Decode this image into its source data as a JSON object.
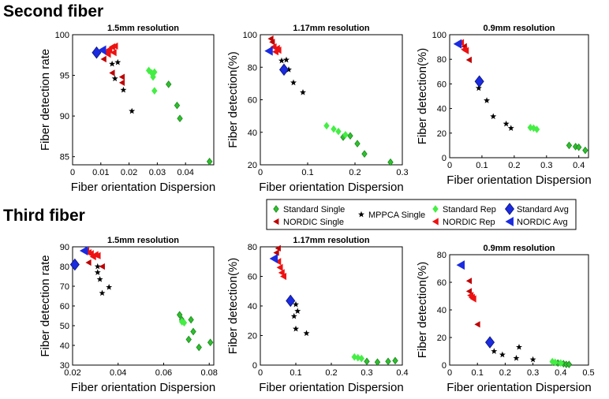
{
  "section_titles": {
    "top": "Second fiber",
    "bottom": "Third fiber"
  },
  "colors": {
    "standard_single": "#2fbf2f",
    "nordic_single": "#c00000",
    "mppca_single": "#000000",
    "standard_rep": "#44ee44",
    "nordic_rep": "#ee1111",
    "standard_avg": "#1a2be0",
    "nordic_avg": "#1a2be0"
  },
  "legend": [
    {
      "key": "standard_single",
      "label": "Standard Single",
      "marker": "diamond"
    },
    {
      "key": "mppca_single",
      "label": "MPPCA Single",
      "marker": "star"
    },
    {
      "key": "standard_rep",
      "label": "Standard Rep",
      "marker": "diamond"
    },
    {
      "key": "standard_avg",
      "label": "Standard Avg",
      "marker": "diamond"
    },
    {
      "key": "nordic_single",
      "label": "NORDIC Single",
      "marker": "triangle"
    },
    {
      "key": "nordic_rep",
      "label": "NORDIC Rep",
      "marker": "triangle"
    },
    {
      "key": "nordic_avg",
      "label": "NORDIC Avg",
      "marker": "triangle"
    }
  ],
  "chart_data": [
    {
      "id": "p1",
      "type": "scatter",
      "title": "1.5mm resolution",
      "xlabel": "Fiber orientation Dispersion",
      "ylabel": "Fiber detection rate",
      "xlim": [
        0,
        0.05
      ],
      "ylim": [
        84,
        100
      ],
      "xticks": [
        0,
        0.01,
        0.02,
        0.03,
        0.04
      ],
      "yticks": [
        85,
        90,
        95,
        100
      ],
      "series": [
        {
          "key": "standard_single",
          "points": [
            [
              0.034,
              93.9
            ],
            [
              0.037,
              91.3
            ],
            [
              0.038,
              89.7
            ],
            [
              0.0485,
              84.4
            ]
          ]
        },
        {
          "key": "standard_rep",
          "points": [
            [
              0.027,
              95.6
            ],
            [
              0.028,
              95.3
            ],
            [
              0.029,
              95.4
            ],
            [
              0.0285,
              94.8
            ],
            [
              0.029,
              93.1
            ]
          ]
        },
        {
          "key": "mppca_single",
          "points": [
            [
              0.014,
              96.4
            ],
            [
              0.016,
              96.6
            ],
            [
              0.015,
              94.6
            ],
            [
              0.018,
              93.2
            ],
            [
              0.021,
              90.6
            ]
          ]
        },
        {
          "key": "nordic_single",
          "points": [
            [
              0.011,
              97.0
            ],
            [
              0.014,
              95.3
            ],
            [
              0.0175,
              94.8
            ],
            [
              0.0175,
              94.1
            ]
          ]
        },
        {
          "key": "nordic_rep",
          "points": [
            [
              0.012,
              97.9
            ],
            [
              0.013,
              98.2
            ],
            [
              0.014,
              98.5
            ],
            [
              0.0145,
              97.8
            ],
            [
              0.015,
              98.6
            ],
            [
              0.0125,
              97.6
            ]
          ]
        },
        {
          "key": "standard_avg",
          "points": [
            [
              0.0085,
              97.8
            ]
          ]
        },
        {
          "key": "nordic_avg",
          "points": [
            [
              0.0105,
              98.1
            ]
          ]
        }
      ]
    },
    {
      "id": "p2",
      "type": "scatter",
      "title": "1.17mm resolution",
      "xlabel": "Fiber orientation Dispersion",
      "ylabel": "Fiber detection(%)",
      "xlim": [
        0,
        0.3
      ],
      "ylim": [
        20,
        100
      ],
      "xticks": [
        0,
        0.1,
        0.2,
        0.3
      ],
      "yticks": [
        20,
        40,
        60,
        80,
        100
      ],
      "series": [
        {
          "key": "standard_single",
          "points": [
            [
              0.175,
              37.0
            ],
            [
              0.19,
              37.8
            ],
            [
              0.205,
              33.0
            ],
            [
              0.22,
              26.7
            ],
            [
              0.275,
              21.6
            ]
          ]
        },
        {
          "key": "standard_rep",
          "points": [
            [
              0.14,
              44.0
            ],
            [
              0.155,
              42.0
            ],
            [
              0.165,
              40.5
            ],
            [
              0.18,
              38.5
            ]
          ]
        },
        {
          "key": "mppca_single",
          "points": [
            [
              0.045,
              84.0
            ],
            [
              0.055,
              84.5
            ],
            [
              0.06,
              78.5
            ],
            [
              0.07,
              70.5
            ],
            [
              0.09,
              64.5
            ]
          ]
        },
        {
          "key": "nordic_single",
          "points": [
            [
              0.022,
              97.5
            ],
            [
              0.025,
              95.5
            ]
          ]
        },
        {
          "key": "nordic_rep",
          "points": [
            [
              0.028,
              92.5
            ],
            [
              0.035,
              91.5
            ],
            [
              0.038,
              90.5
            ],
            [
              0.032,
              89.5
            ]
          ]
        },
        {
          "key": "standard_avg",
          "points": [
            [
              0.05,
              78.5
            ]
          ]
        },
        {
          "key": "nordic_avg",
          "points": [
            [
              0.018,
              90.0
            ]
          ]
        }
      ]
    },
    {
      "id": "p3",
      "type": "scatter",
      "title": "0.9mm resolution",
      "xlabel": "Fiber orientation Dispersion",
      "ylabel": "Fiber detection(%)",
      "xlim": [
        0,
        0.43
      ],
      "ylim": [
        0,
        100
      ],
      "xticks": [
        0,
        0.1,
        0.2,
        0.3,
        0.4
      ],
      "yticks": [
        0,
        20,
        40,
        60,
        80,
        100
      ],
      "series": [
        {
          "key": "standard_single",
          "points": [
            [
              0.37,
              10.0
            ],
            [
              0.39,
              9.0
            ],
            [
              0.4,
              8.5
            ],
            [
              0.42,
              6.0
            ]
          ]
        },
        {
          "key": "standard_rep",
          "points": [
            [
              0.25,
              24.5
            ],
            [
              0.26,
              24.0
            ],
            [
              0.27,
              23.0
            ]
          ]
        },
        {
          "key": "mppca_single",
          "points": [
            [
              0.09,
              56.5
            ],
            [
              0.115,
              46.5
            ],
            [
              0.135,
              33.5
            ],
            [
              0.175,
              27.5
            ],
            [
              0.19,
              24.0
            ]
          ]
        },
        {
          "key": "nordic_single",
          "points": [
            [
              0.045,
              90.5
            ],
            [
              0.06,
              79.5
            ]
          ]
        },
        {
          "key": "nordic_rep",
          "points": [
            [
              0.035,
              93.5
            ],
            [
              0.045,
              88.0
            ],
            [
              0.05,
              87.0
            ]
          ]
        },
        {
          "key": "standard_avg",
          "points": [
            [
              0.092,
              62.0
            ]
          ]
        },
        {
          "key": "nordic_avg",
          "points": [
            [
              0.025,
              92.5
            ]
          ]
        }
      ]
    },
    {
      "id": "p4",
      "type": "scatter",
      "title": "1.5mm resolution",
      "xlabel": "Fiber orientation Dispersion",
      "ylabel": "Fiber detection rate",
      "xlim": [
        0.02,
        0.082
      ],
      "ylim": [
        30,
        90
      ],
      "xticks": [
        0.02,
        0.04,
        0.06,
        0.08
      ],
      "yticks": [
        30,
        40,
        50,
        60,
        70,
        80,
        90
      ],
      "series": [
        {
          "key": "standard_single",
          "points": [
            [
              0.067,
              55.5
            ],
            [
              0.068,
              53.0
            ],
            [
              0.072,
              53.0
            ],
            [
              0.073,
              47.0
            ],
            [
              0.071,
              43.0
            ],
            [
              0.0755,
              39.0
            ],
            [
              0.0805,
              41.5
            ]
          ]
        },
        {
          "key": "standard_rep",
          "points": [
            [
              0.068,
              52.0
            ],
            [
              0.069,
              51.5
            ]
          ]
        },
        {
          "key": "mppca_single",
          "points": [
            [
              0.031,
              80.0
            ],
            [
              0.031,
              77.0
            ],
            [
              0.032,
              73.5
            ],
            [
              0.036,
              69.5
            ],
            [
              0.033,
              66.5
            ]
          ]
        },
        {
          "key": "nordic_single",
          "points": [
            [
              0.027,
              82.0
            ],
            [
              0.033,
              80.0
            ]
          ]
        },
        {
          "key": "nordic_rep",
          "points": [
            [
              0.026,
              88.0
            ],
            [
              0.028,
              86.5
            ],
            [
              0.029,
              85.0
            ],
            [
              0.03,
              86.0
            ],
            [
              0.031,
              85.5
            ],
            [
              0.027,
              87.0
            ]
          ]
        },
        {
          "key": "standard_avg",
          "points": [
            [
              0.021,
              81.0
            ]
          ]
        },
        {
          "key": "nordic_avg",
          "points": [
            [
              0.025,
              88.0
            ]
          ]
        }
      ]
    },
    {
      "id": "p5",
      "type": "scatter",
      "title": "1.17mm resolution",
      "xlabel": "Fiber orientation Dispersion",
      "ylabel": "Fiber detection(%)",
      "xlim": [
        0,
        0.4
      ],
      "ylim": [
        0,
        80
      ],
      "xticks": [
        0,
        0.1,
        0.2,
        0.3,
        0.4
      ],
      "yticks": [
        0,
        20,
        40,
        60,
        80
      ],
      "series": [
        {
          "key": "standard_single",
          "points": [
            [
              0.3,
              2.5
            ],
            [
              0.33,
              2.0
            ],
            [
              0.36,
              2.5
            ],
            [
              0.38,
              3.0
            ]
          ]
        },
        {
          "key": "standard_rep",
          "points": [
            [
              0.265,
              5.5
            ],
            [
              0.275,
              5.0
            ],
            [
              0.285,
              4.5
            ]
          ]
        },
        {
          "key": "mppca_single",
          "points": [
            [
              0.1,
              41.0
            ],
            [
              0.105,
              36.5
            ],
            [
              0.095,
              33.0
            ],
            [
              0.1,
              24.5
            ],
            [
              0.13,
              21.5
            ]
          ]
        },
        {
          "key": "nordic_single",
          "points": [
            [
              0.05,
              79.0
            ],
            [
              0.045,
              76.0
            ]
          ]
        },
        {
          "key": "nordic_rep",
          "points": [
            [
              0.05,
              70.0
            ],
            [
              0.055,
              66.0
            ],
            [
              0.06,
              62.5
            ],
            [
              0.065,
              60.0
            ]
          ]
        },
        {
          "key": "standard_avg",
          "points": [
            [
              0.085,
              43.5
            ]
          ]
        },
        {
          "key": "nordic_avg",
          "points": [
            [
              0.038,
              72.0
            ]
          ]
        }
      ]
    },
    {
      "id": "p6",
      "type": "scatter",
      "title": "0.9mm resolution",
      "xlabel": "Fiber orientation Dispersion",
      "ylabel": "Fiber detection(%)",
      "xlim": [
        0,
        0.5
      ],
      "ylim": [
        0,
        80
      ],
      "xticks": [
        0,
        0.1,
        0.2,
        0.3,
        0.4,
        0.5
      ],
      "yticks": [
        0,
        20,
        40,
        60,
        80
      ],
      "series": [
        {
          "key": "standard_single",
          "points": [
            [
              0.39,
              1.5
            ],
            [
              0.41,
              1.0
            ],
            [
              0.42,
              0.5
            ],
            [
              0.43,
              0.5
            ]
          ]
        },
        {
          "key": "standard_rep",
          "points": [
            [
              0.37,
              2.5
            ],
            [
              0.38,
              2.0
            ],
            [
              0.4,
              1.5
            ]
          ]
        },
        {
          "key": "mppca_single",
          "points": [
            [
              0.16,
              10.0
            ],
            [
              0.19,
              7.5
            ],
            [
              0.24,
              5.0
            ],
            [
              0.25,
              13.0
            ],
            [
              0.3,
              4.0
            ]
          ]
        },
        {
          "key": "nordic_single",
          "points": [
            [
              0.07,
              61.0
            ],
            [
              0.07,
              53.5
            ],
            [
              0.1,
              29.5
            ]
          ]
        },
        {
          "key": "nordic_rep",
          "points": [
            [
              0.075,
              50.5
            ],
            [
              0.08,
              49.0
            ],
            [
              0.085,
              48.0
            ]
          ]
        },
        {
          "key": "standard_avg",
          "points": [
            [
              0.145,
              16.5
            ]
          ]
        },
        {
          "key": "nordic_avg",
          "points": [
            [
              0.04,
              72.5
            ]
          ]
        }
      ]
    }
  ]
}
